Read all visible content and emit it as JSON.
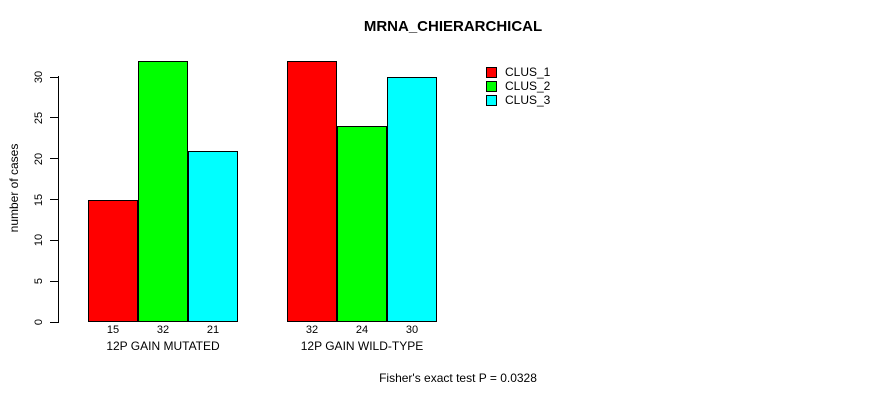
{
  "title": "MRNA_CHIERARCHICAL",
  "footer": "Fisher's exact test P = 0.0328",
  "chart_data": {
    "type": "bar",
    "title": "MRNA_CHIERARCHICAL",
    "ylabel": "number of cases",
    "xlabel": "",
    "groups": [
      "12P GAIN MUTATED",
      "12P GAIN WILD-TYPE"
    ],
    "series": [
      {
        "name": "CLUS_1",
        "color": "#ff0000",
        "values": [
          15,
          32
        ]
      },
      {
        "name": "CLUS_2",
        "color": "#00ff00",
        "values": [
          32,
          24
        ]
      },
      {
        "name": "CLUS_3",
        "color": "#00ffff",
        "values": [
          21,
          30
        ]
      }
    ],
    "bar_value_labels": [
      [
        15,
        32,
        21
      ],
      [
        32,
        24,
        30
      ]
    ],
    "yticks": [
      0,
      5,
      10,
      15,
      20,
      25,
      30
    ],
    "ylim": [
      0,
      30
    ],
    "grid": false,
    "legend_position": "top-right",
    "annotation": "Fisher's exact test P = 0.0328"
  }
}
